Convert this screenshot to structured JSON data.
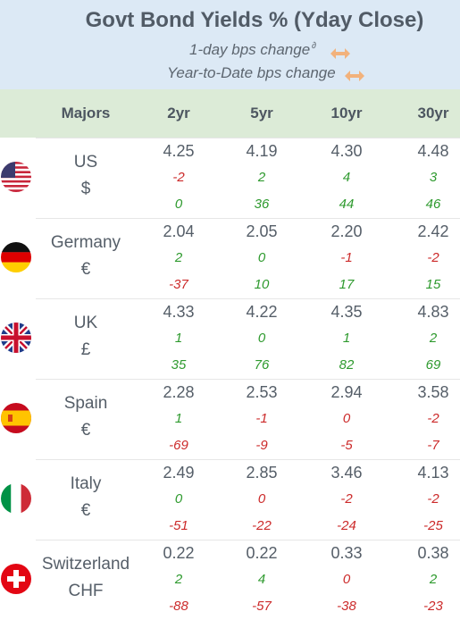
{
  "header": {
    "title": "Govt Bond Yields %  (Yday Close)",
    "legend_daily": "1-day bps change",
    "legend_daily_sup": "∂",
    "legend_ytd": "Year-to-Date bps change"
  },
  "columns": [
    "Majors",
    "2yr",
    "5yr",
    "10yr",
    "30yr"
  ],
  "rows": [
    {
      "country": "US",
      "currency": "$",
      "flag_icon": "us-flag-icon",
      "yields": [
        "4.25",
        "4.19",
        "4.30",
        "4.48"
      ],
      "daily": [
        "-2",
        "2",
        "4",
        "3"
      ],
      "daily_color": [
        "neg",
        "pos",
        "pos",
        "pos"
      ],
      "ytd": [
        "0",
        "36",
        "44",
        "46"
      ],
      "ytd_color": [
        "pos",
        "pos",
        "pos",
        "pos"
      ]
    },
    {
      "country": "Germany",
      "currency": "€",
      "flag_icon": "germany-flag-icon",
      "yields": [
        "2.04",
        "2.05",
        "2.20",
        "2.42"
      ],
      "daily": [
        "2",
        "0",
        "-1",
        "-2"
      ],
      "daily_color": [
        "pos",
        "pos",
        "neg",
        "neg"
      ],
      "ytd": [
        "-37",
        "10",
        "17",
        "15"
      ],
      "ytd_color": [
        "neg",
        "pos",
        "pos",
        "pos"
      ]
    },
    {
      "country": "UK",
      "currency": "£",
      "flag_icon": "uk-flag-icon",
      "yields": [
        "4.33",
        "4.22",
        "4.35",
        "4.83"
      ],
      "daily": [
        "1",
        "0",
        "1",
        "2"
      ],
      "daily_color": [
        "pos",
        "pos",
        "pos",
        "pos"
      ],
      "ytd": [
        "35",
        "76",
        "82",
        "69"
      ],
      "ytd_color": [
        "pos",
        "pos",
        "pos",
        "pos"
      ]
    },
    {
      "country": "Spain",
      "currency": "€",
      "flag_icon": "spain-flag-icon",
      "yields": [
        "2.28",
        "2.53",
        "2.94",
        "3.58"
      ],
      "daily": [
        "1",
        "-1",
        "0",
        "-2"
      ],
      "daily_color": [
        "pos",
        "neg",
        "neg",
        "neg"
      ],
      "ytd": [
        "-69",
        "-9",
        "-5",
        "-7"
      ],
      "ytd_color": [
        "neg",
        "neg",
        "neg",
        "neg"
      ]
    },
    {
      "country": "Italy",
      "currency": "€",
      "flag_icon": "italy-flag-icon",
      "yields": [
        "2.49",
        "2.85",
        "3.46",
        "4.13"
      ],
      "daily": [
        "0",
        "0",
        "-2",
        "-2"
      ],
      "daily_color": [
        "pos",
        "neg",
        "neg",
        "neg"
      ],
      "ytd": [
        "-51",
        "-22",
        "-24",
        "-25"
      ],
      "ytd_color": [
        "neg",
        "neg",
        "neg",
        "neg"
      ]
    },
    {
      "country": "Switzerland",
      "currency": "CHF",
      "flag_icon": "switzerland-flag-icon",
      "yields": [
        "0.22",
        "0.22",
        "0.33",
        "0.38"
      ],
      "daily": [
        "2",
        "4",
        "0",
        "2"
      ],
      "daily_color": [
        "pos",
        "pos",
        "neg",
        "pos"
      ],
      "ytd": [
        "-88",
        "-57",
        "-38",
        "-23"
      ],
      "ytd_color": [
        "neg",
        "neg",
        "neg",
        "neg"
      ]
    }
  ],
  "colors": {
    "positive": "#2e9a2e",
    "negative": "#cc2a2a",
    "header_bg": "#dce9f5",
    "colhead_bg": "#dcebd7",
    "arrow": "#f2b27c"
  }
}
